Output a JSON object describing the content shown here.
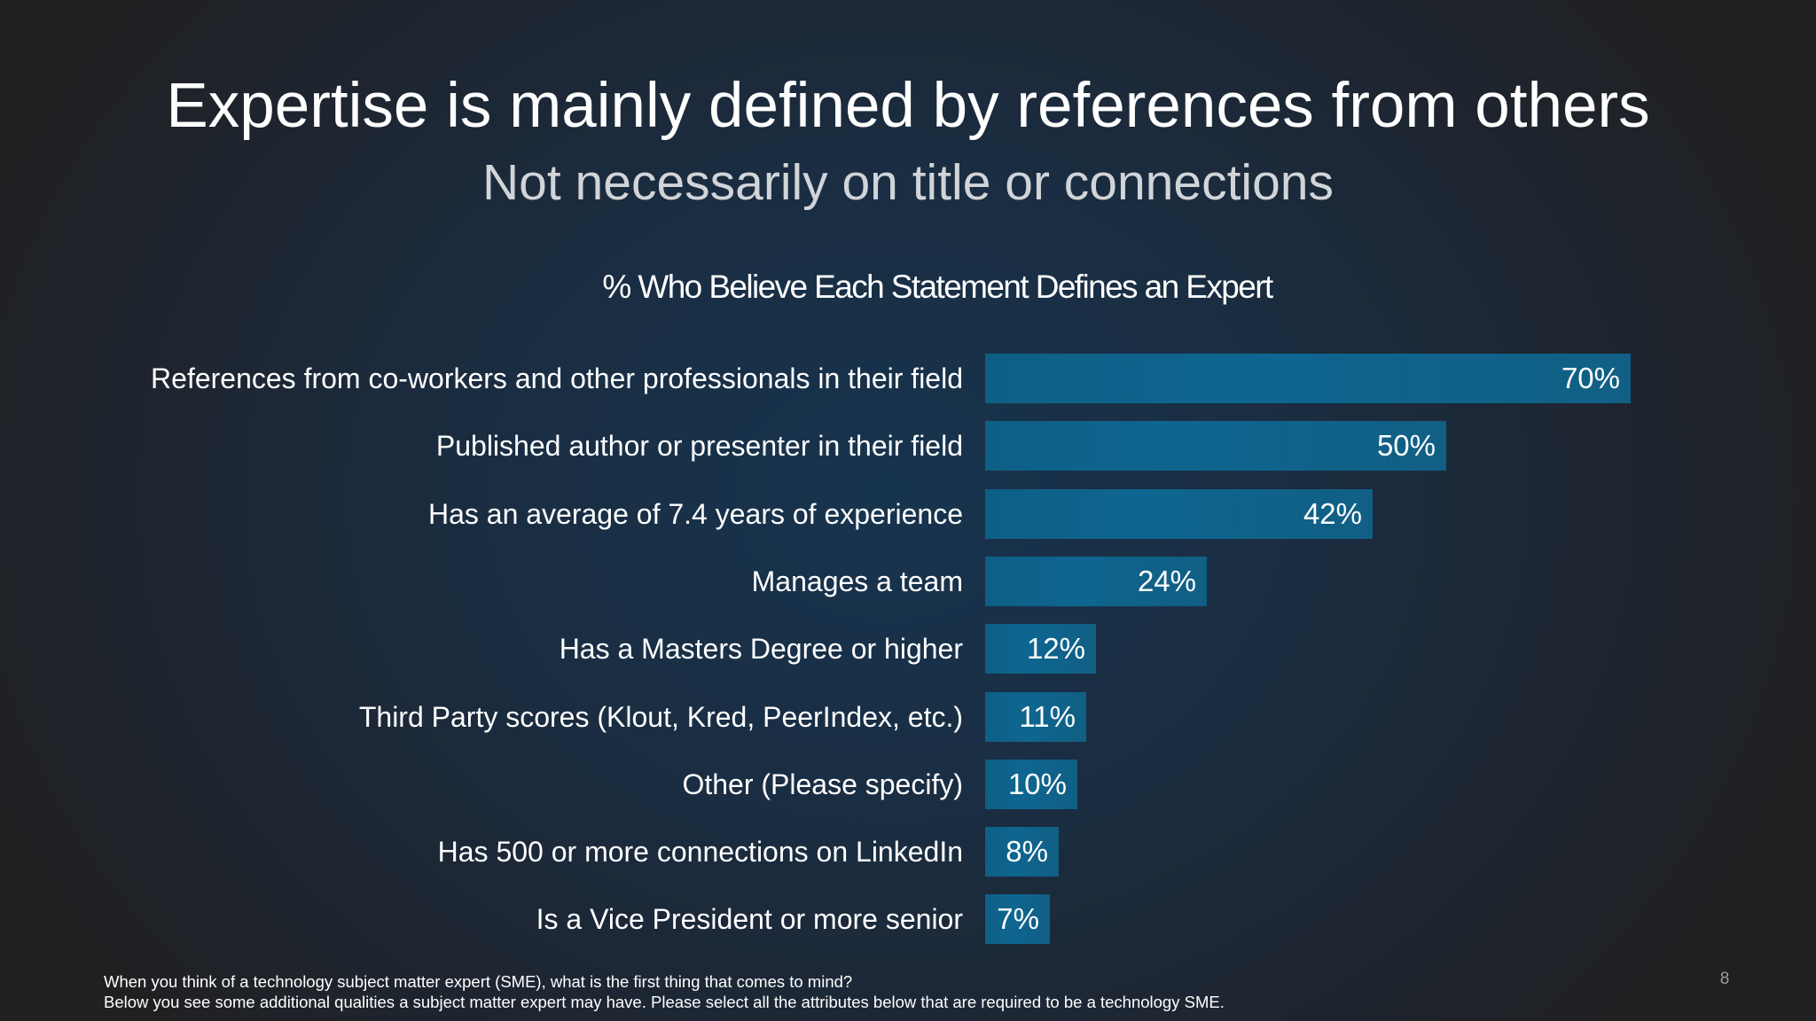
{
  "slide": {
    "title": "Expertise is mainly defined by references from others",
    "subtitle": "Not necessarily on title or connections",
    "page_number": "8",
    "footnote": {
      "line1": "When you think of a technology subject matter expert (SME), what is the first thing that comes to mind?",
      "line2": "Below you see some additional qualities a subject matter expert may have. Please select all the attributes below that are required to be a technology SME."
    },
    "colors": {
      "bar": "#0e6690",
      "background_center": "#17344f",
      "background_edge": "#202022",
      "text": "#ffffff",
      "subtitle": "#d1d4d8"
    }
  },
  "chart_data": {
    "type": "bar",
    "orientation": "horizontal",
    "title": "% Who Believe Each Statement Defines an Expert",
    "xlabel": "",
    "ylabel": "",
    "xlim": [
      0,
      70
    ],
    "grid": false,
    "legend": null,
    "data_labels": true,
    "categories": [
      "References from co-workers and other professionals in their field",
      "Published author or presenter in their field",
      "Has an average of 7.4 years of experience",
      "Manages a team",
      "Has a Masters Degree or higher",
      "Third Party scores (Klout, Kred, PeerIndex, etc.)",
      "Other (Please specify)",
      "Has 500 or more connections on LinkedIn",
      "Is a Vice President or more senior"
    ],
    "values": [
      70,
      50,
      42,
      24,
      12,
      11,
      10,
      8,
      7
    ],
    "value_labels": [
      "70%",
      "50%",
      "42%",
      "24%",
      "12%",
      "11%",
      "10%",
      "8%",
      "7%"
    ]
  }
}
